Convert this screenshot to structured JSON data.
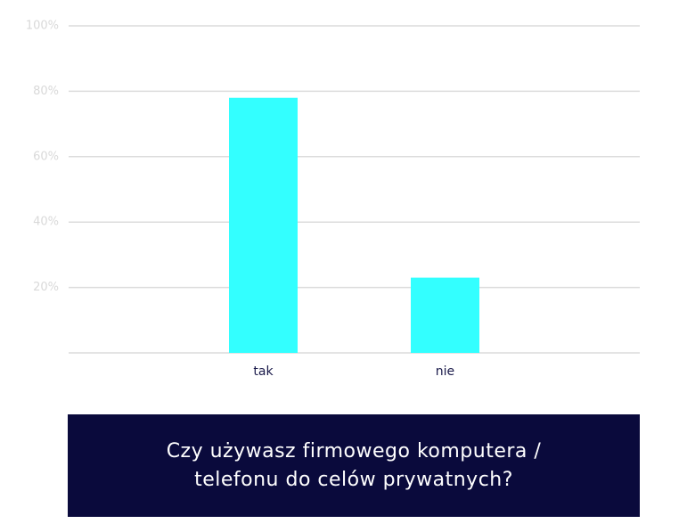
{
  "chart_data": {
    "type": "bar",
    "title": "Czy używasz firmowego komputera /\ntelefonu do celów prywatnych?",
    "categories": [
      "tak",
      "nie"
    ],
    "values": [
      78,
      23
    ],
    "color": "#33ffff",
    "ylim": [
      0,
      100
    ],
    "yticks": [
      {
        "value": 20,
        "label": "20%"
      },
      {
        "value": 40,
        "label": "40%"
      },
      {
        "value": 60,
        "label": "60%"
      },
      {
        "value": 80,
        "label": "80%"
      },
      {
        "value": 100,
        "label": "100%"
      }
    ],
    "grid": true
  }
}
